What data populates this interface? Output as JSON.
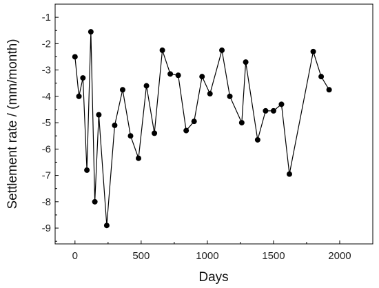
{
  "chart_data": {
    "type": "line",
    "xlabel": "Days",
    "ylabel": "Settlement rate / (mm/month)",
    "xlim": [
      -150,
      2250
    ],
    "ylim": [
      -9.6,
      -0.5
    ],
    "xticks": [
      0,
      500,
      1000,
      1500,
      2000
    ],
    "yticks": [
      -1,
      -2,
      -3,
      -4,
      -5,
      -6,
      -7,
      -8,
      -9
    ],
    "xtick_labels": [
      "0",
      "500",
      "1000",
      "1500",
      "2000"
    ],
    "ytick_labels": [
      "-1",
      "-2",
      "-3",
      "-4",
      "-5",
      "-6",
      "-7",
      "-8",
      "-9"
    ],
    "grid": false,
    "legend": "none",
    "marker": "filled-circle",
    "line_color": "#000000",
    "series": [
      {
        "x": [
          0,
          30,
          60,
          90,
          120,
          150,
          180,
          240,
          300,
          360,
          420,
          480,
          540,
          600,
          660,
          720,
          780,
          840,
          900,
          960,
          1020,
          1110,
          1170,
          1260,
          1290,
          1380,
          1440,
          1500,
          1560,
          1620,
          1800,
          1860,
          1920
        ],
        "y": [
          -2.5,
          -4.0,
          -3.3,
          -6.8,
          -1.55,
          -8.0,
          -4.7,
          -8.9,
          -5.1,
          -3.75,
          -5.5,
          -6.35,
          -3.6,
          -5.4,
          -2.25,
          -3.15,
          -3.2,
          -5.3,
          -4.95,
          -3.25,
          -3.9,
          -2.25,
          -4.0,
          -5.0,
          -2.7,
          -5.65,
          -4.55,
          -4.55,
          -4.3,
          -6.95,
          -2.3,
          -3.25,
          -3.75
        ]
      }
    ]
  }
}
